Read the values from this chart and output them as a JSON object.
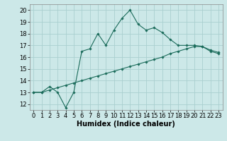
{
  "xlabel": "Humidex (Indice chaleur)",
  "ylabel": "",
  "background_color": "#cce8e8",
  "grid_color": "#aacfcf",
  "line_color": "#1a6b5a",
  "xlim": [
    -0.5,
    23.5
  ],
  "ylim": [
    11.5,
    20.5
  ],
  "xticks": [
    0,
    1,
    2,
    3,
    4,
    5,
    6,
    7,
    8,
    9,
    10,
    11,
    12,
    13,
    14,
    15,
    16,
    17,
    18,
    19,
    20,
    21,
    22,
    23
  ],
  "yticks": [
    12,
    13,
    14,
    15,
    16,
    17,
    18,
    19,
    20
  ],
  "curve1_x": [
    0,
    1,
    2,
    3,
    4,
    5,
    6,
    7,
    8,
    9,
    10,
    11,
    12,
    13,
    14,
    15,
    16,
    17,
    18,
    19,
    20,
    21,
    22,
    23
  ],
  "curve1_y": [
    13.0,
    13.0,
    13.5,
    13.0,
    11.7,
    13.0,
    16.5,
    16.7,
    18.0,
    17.0,
    18.3,
    19.3,
    20.0,
    18.8,
    18.3,
    18.5,
    18.1,
    17.5,
    17.0,
    17.0,
    17.0,
    16.9,
    16.5,
    16.3
  ],
  "curve2_x": [
    0,
    1,
    2,
    3,
    4,
    5,
    6,
    7,
    8,
    9,
    10,
    11,
    12,
    13,
    14,
    15,
    16,
    17,
    18,
    19,
    20,
    21,
    22,
    23
  ],
  "curve2_y": [
    13.0,
    13.0,
    13.2,
    13.4,
    13.6,
    13.8,
    14.0,
    14.2,
    14.4,
    14.6,
    14.8,
    15.0,
    15.2,
    15.4,
    15.6,
    15.8,
    16.0,
    16.3,
    16.5,
    16.7,
    16.9,
    16.9,
    16.6,
    16.4
  ],
  "title_fontsize": 7.5,
  "axis_fontsize": 7,
  "tick_fontsize": 6
}
